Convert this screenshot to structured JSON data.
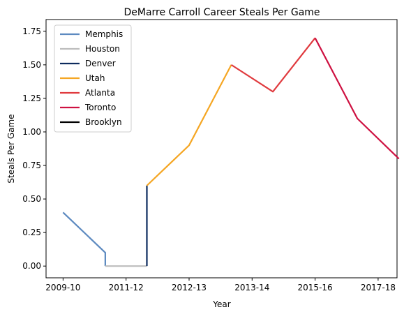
{
  "chart_data": {
    "type": "line",
    "title": "DeMarre Carroll Career Steals Per Game",
    "xlabel": "Year",
    "ylabel": "Steals Per Game",
    "x_tick_labels": [
      "2009-10",
      "2011-12",
      "2012-13",
      "2013-14",
      "2015-16",
      "2017-18"
    ],
    "x_tick_positions": [
      0,
      1,
      2,
      3,
      4,
      5
    ],
    "x_range": [
      -0.27,
      5.3
    ],
    "ylim": [
      -0.0875,
      1.8375
    ],
    "y_ticks": [
      0.0,
      0.25,
      0.5,
      0.75,
      1.0,
      1.25,
      1.5,
      1.75
    ],
    "y_tick_labels": [
      "0.00",
      "0.25",
      "0.50",
      "0.75",
      "1.00",
      "1.25",
      "1.50",
      "1.75"
    ],
    "grid": false,
    "legend_position": "upper-left",
    "series": [
      {
        "name": "Memphis",
        "color": "#5D8AC0",
        "points": [
          [
            0,
            0.4
          ],
          [
            0.67,
            0.1
          ],
          [
            0.67,
            0.0
          ]
        ]
      },
      {
        "name": "Houston",
        "color": "#BDBDBD",
        "points": [
          [
            0.67,
            0.0
          ],
          [
            1.33,
            0.0
          ]
        ]
      },
      {
        "name": "Denver",
        "color": "#0D2B5E",
        "points": [
          [
            1.33,
            0.0
          ],
          [
            1.33,
            0.6
          ]
        ]
      },
      {
        "name": "Utah",
        "color": "#F5A623",
        "points": [
          [
            1.33,
            0.6
          ],
          [
            2.0,
            0.9
          ],
          [
            2.67,
            1.5
          ]
        ]
      },
      {
        "name": "Atlanta",
        "color": "#E03A3E",
        "points": [
          [
            2.67,
            1.5
          ],
          [
            3.33,
            1.3
          ],
          [
            4.0,
            1.7
          ]
        ]
      },
      {
        "name": "Toronto",
        "color": "#CE1141",
        "points": [
          [
            4.0,
            1.7
          ],
          [
            4.67,
            1.1
          ],
          [
            5.33,
            0.8
          ]
        ]
      },
      {
        "name": "Brooklyn",
        "color": "#000000",
        "points": []
      }
    ]
  }
}
